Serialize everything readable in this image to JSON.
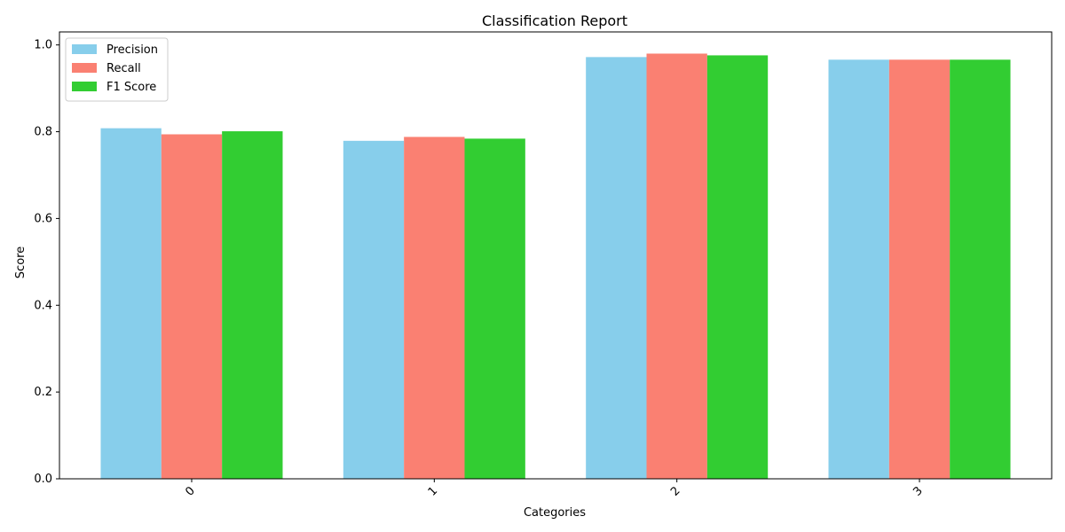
{
  "chart_data": {
    "type": "bar",
    "title": "Classification Report",
    "xlabel": "Categories",
    "ylabel": "Score",
    "categories": [
      "0",
      "1",
      "2",
      "3"
    ],
    "ylim": [
      0,
      1.03
    ],
    "yticks": [
      0.0,
      0.2,
      0.4,
      0.6,
      0.8,
      1.0
    ],
    "ytick_labels": [
      "0.0",
      "0.2",
      "0.4",
      "0.6",
      "0.8",
      "1.0"
    ],
    "grid": false,
    "legend_position": "top-left",
    "series": [
      {
        "name": "Precision",
        "color": "#87CEEB",
        "values": [
          0.808,
          0.779,
          0.972,
          0.966
        ]
      },
      {
        "name": "Recall",
        "color": "#FA8072",
        "values": [
          0.794,
          0.788,
          0.98,
          0.966
        ]
      },
      {
        "name": "F1 Score",
        "color": "#32CD32",
        "values": [
          0.801,
          0.784,
          0.976,
          0.966
        ]
      }
    ]
  }
}
